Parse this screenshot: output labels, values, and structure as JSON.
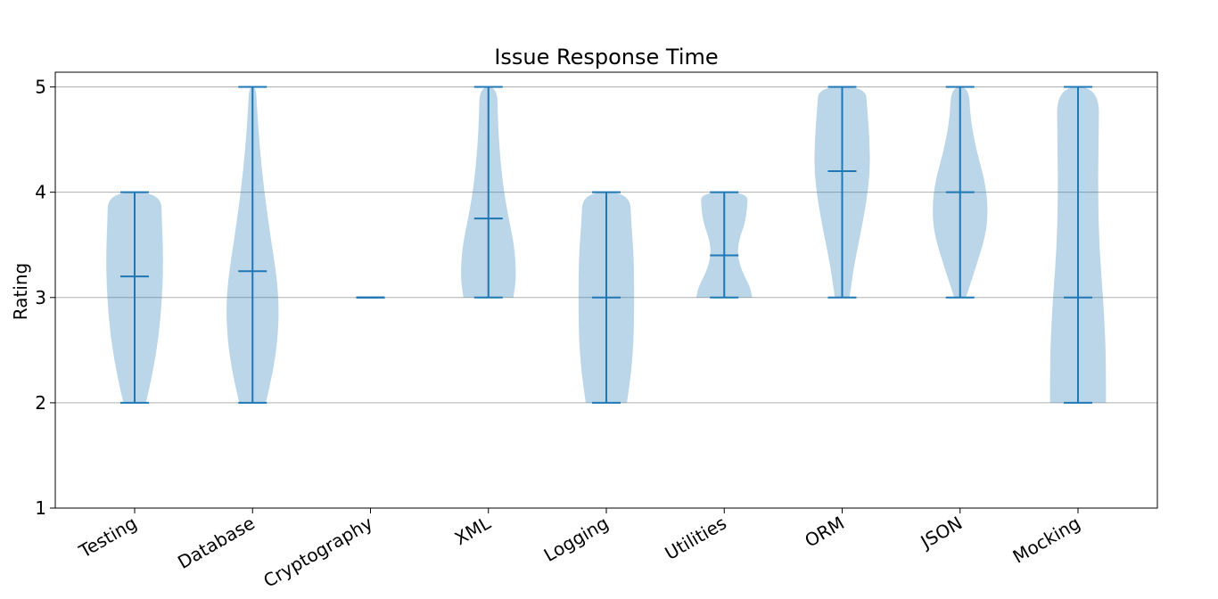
{
  "chart_data": {
    "type": "violin",
    "title": "Issue Response Time",
    "xlabel": "",
    "ylabel": "Rating",
    "ylim": [
      1,
      5.14
    ],
    "yticks": [
      1,
      2,
      3,
      4,
      5
    ],
    "grid": "y",
    "colors": {
      "body": "#1f77b4",
      "body_alpha": 0.3,
      "lines": "#1f77b4",
      "grid": "#b0b0b0",
      "axis": "#000000"
    },
    "categories": [
      "Testing",
      "Database",
      "Cryptography",
      "XML",
      "Logging",
      "Utilities",
      "ORM",
      "JSON",
      "Mocking"
    ],
    "series": [
      {
        "category": "Testing",
        "min": 2,
        "max": 4,
        "mean": 3.2,
        "width_profile": [
          [
            2.0,
            0.38
          ],
          [
            2.2,
            0.55
          ],
          [
            2.5,
            0.75
          ],
          [
            2.8,
            0.88
          ],
          [
            3.1,
            0.95
          ],
          [
            3.4,
            0.97
          ],
          [
            3.7,
            0.93
          ],
          [
            4.0,
            0.9
          ]
        ]
      },
      {
        "category": "Database",
        "min": 2,
        "max": 5,
        "mean": 3.25,
        "width_profile": [
          [
            2.0,
            0.45
          ],
          [
            2.3,
            0.7
          ],
          [
            2.6,
            0.85
          ],
          [
            2.9,
            0.9
          ],
          [
            3.2,
            0.82
          ],
          [
            3.6,
            0.6
          ],
          [
            4.0,
            0.4
          ],
          [
            4.4,
            0.25
          ],
          [
            4.8,
            0.15
          ],
          [
            5.0,
            0.12
          ]
        ]
      },
      {
        "category": "Cryptography",
        "min": 3,
        "max": 3,
        "mean": 3,
        "width_profile": []
      },
      {
        "category": "XML",
        "min": 3,
        "max": 5,
        "mean": 3.75,
        "width_profile": [
          [
            3.0,
            0.85
          ],
          [
            3.2,
            0.95
          ],
          [
            3.5,
            0.88
          ],
          [
            3.8,
            0.65
          ],
          [
            4.1,
            0.48
          ],
          [
            4.4,
            0.38
          ],
          [
            4.7,
            0.32
          ],
          [
            5.0,
            0.3
          ]
        ]
      },
      {
        "category": "Logging",
        "min": 2,
        "max": 4,
        "mean": 3,
        "width_profile": [
          [
            2.0,
            0.7
          ],
          [
            2.3,
            0.85
          ],
          [
            2.6,
            0.93
          ],
          [
            3.0,
            0.95
          ],
          [
            3.4,
            0.93
          ],
          [
            3.7,
            0.85
          ],
          [
            4.0,
            0.8
          ]
        ]
      },
      {
        "category": "Utilities",
        "min": 3,
        "max": 4,
        "mean": 3.4,
        "width_profile": [
          [
            3.0,
            0.95
          ],
          [
            3.1,
            0.88
          ],
          [
            3.25,
            0.6
          ],
          [
            3.4,
            0.45
          ],
          [
            3.55,
            0.5
          ],
          [
            3.7,
            0.7
          ],
          [
            3.85,
            0.78
          ],
          [
            4.0,
            0.8
          ]
        ]
      },
      {
        "category": "ORM",
        "min": 3,
        "max": 5,
        "mean": 4.2,
        "width_profile": [
          [
            3.0,
            0.25
          ],
          [
            3.3,
            0.4
          ],
          [
            3.6,
            0.62
          ],
          [
            3.9,
            0.82
          ],
          [
            4.2,
            0.95
          ],
          [
            4.5,
            0.93
          ],
          [
            4.8,
            0.85
          ],
          [
            5.0,
            0.8
          ]
        ]
      },
      {
        "category": "JSON",
        "min": 3,
        "max": 5,
        "mean": 4,
        "width_profile": [
          [
            3.0,
            0.2
          ],
          [
            3.3,
            0.55
          ],
          [
            3.6,
            0.88
          ],
          [
            3.85,
            0.95
          ],
          [
            4.1,
            0.85
          ],
          [
            4.4,
            0.55
          ],
          [
            4.7,
            0.35
          ],
          [
            5.0,
            0.3
          ]
        ]
      },
      {
        "category": "Mocking",
        "min": 2,
        "max": 5,
        "mean": 3,
        "width_profile": [
          [
            2.0,
            0.95
          ],
          [
            2.3,
            0.95
          ],
          [
            2.6,
            0.93
          ],
          [
            3.0,
            0.85
          ],
          [
            3.5,
            0.72
          ],
          [
            4.0,
            0.68
          ],
          [
            4.5,
            0.7
          ],
          [
            5.0,
            0.72
          ]
        ]
      }
    ]
  }
}
